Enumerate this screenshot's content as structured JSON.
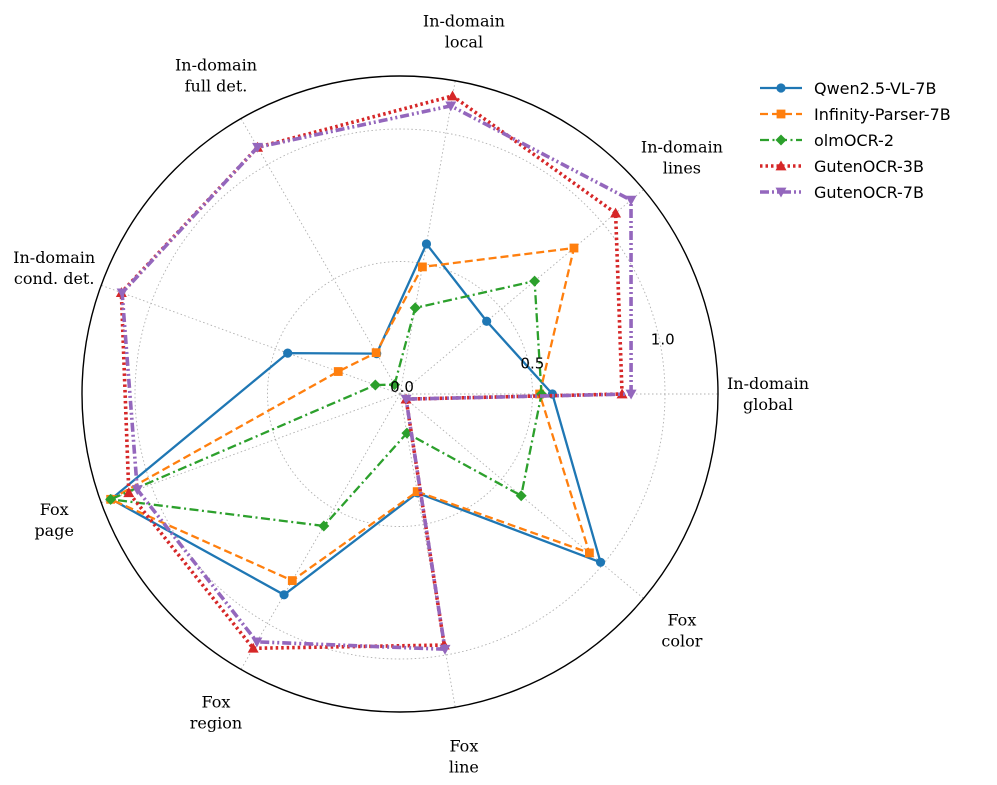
{
  "chart_data": {
    "type": "radar",
    "axes": [
      {
        "label": [
          "In-domain",
          "global"
        ]
      },
      {
        "label": [
          "In-domain",
          "lines"
        ]
      },
      {
        "label": [
          "In-domain",
          "local"
        ]
      },
      {
        "label": [
          "In-domain",
          "full det."
        ]
      },
      {
        "label": [
          "In-domain",
          "cond. det."
        ]
      },
      {
        "label": [
          "Fox",
          "page"
        ]
      },
      {
        "label": [
          "Fox",
          "region"
        ]
      },
      {
        "label": [
          "Fox",
          "line"
        ]
      },
      {
        "label": [
          "Fox",
          "color"
        ]
      }
    ],
    "r_range": [
      0,
      1.2
    ],
    "r_ticks": [
      "0.0",
      "0.5",
      "1.0"
    ],
    "r_tick_values": [
      0,
      0.5,
      1.0
    ],
    "grid": true,
    "legend_position": "top-right",
    "series": [
      {
        "name": "Qwen2.5-VL-7B",
        "color": "#1f77b4",
        "marker": "circle",
        "dash": "solid",
        "values": [
          0.575,
          0.427,
          0.575,
          0.176,
          0.451,
          1.16,
          0.875,
          0.379,
          0.988
        ]
      },
      {
        "name": "Infinity-Parser-7B",
        "color": "#ff7f0e",
        "marker": "square",
        "dash": "dashed",
        "values": [
          0.527,
          0.857,
          0.487,
          0.18,
          0.248,
          1.162,
          0.813,
          0.374,
          0.933
        ]
      },
      {
        "name": "olmOCR-2",
        "color": "#2ca02c",
        "marker": "diamond",
        "dash": "dashdot",
        "values": [
          0.534,
          0.663,
          0.33,
          0.041,
          0.099,
          1.162,
          0.575,
          0.15,
          0.597
        ]
      },
      {
        "name": "GutenOCR-3B",
        "color": "#d62728",
        "marker": "triangle-up",
        "dash": "dotted",
        "values": [
          0.838,
          1.062,
          1.142,
          1.075,
          1.119,
          1.089,
          1.108,
          0.962,
          0.03
        ]
      },
      {
        "name": "GutenOCR-7B",
        "color": "#9467bd",
        "marker": "triangle-down",
        "dash": "dashdotdot",
        "values": [
          0.872,
          1.138,
          1.104,
          1.075,
          1.116,
          1.055,
          1.08,
          0.978,
          0.03
        ]
      }
    ]
  }
}
